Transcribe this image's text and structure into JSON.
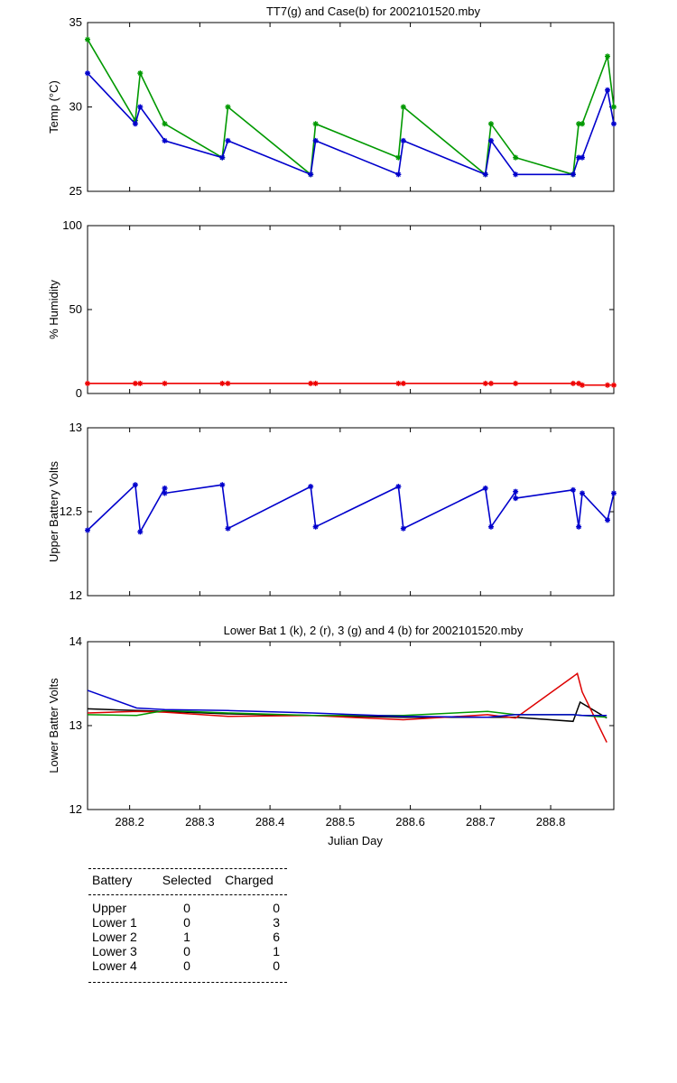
{
  "chart_data": [
    {
      "type": "line",
      "title": "TT7(g) and Case(b) for 2002101520.mby",
      "ylabel": "Temp  (°C)",
      "xlabel": "",
      "xlim": [
        288.14,
        288.89
      ],
      "ylim": [
        25,
        35
      ],
      "yticks": [
        "25",
        "30",
        "35"
      ],
      "xticks": [],
      "grid": false,
      "series": [
        {
          "name": "TT7",
          "color": "#009900",
          "x": [
            288.14,
            288.208,
            288.215,
            288.25,
            288.332,
            288.34,
            288.458,
            288.465,
            288.583,
            288.59,
            288.707,
            288.715,
            288.75,
            288.832,
            288.84,
            288.845,
            288.881,
            288.89
          ],
          "y": [
            34,
            29.2,
            32,
            29,
            27,
            30,
            26,
            29,
            27,
            30,
            26,
            29,
            27,
            26,
            29,
            29,
            33,
            30
          ]
        },
        {
          "name": "Case",
          "color": "#0000cc",
          "x": [
            288.14,
            288.208,
            288.215,
            288.25,
            288.332,
            288.34,
            288.458,
            288.465,
            288.583,
            288.59,
            288.707,
            288.715,
            288.75,
            288.832,
            288.84,
            288.845,
            288.881,
            288.89
          ],
          "y": [
            32,
            29,
            30,
            28,
            27,
            28,
            26,
            28,
            26,
            28,
            26,
            28,
            26,
            26,
            27,
            27,
            31,
            29
          ]
        }
      ]
    },
    {
      "type": "line",
      "title": "",
      "ylabel": "% Humidity",
      "xlabel": "",
      "xlim": [
        288.14,
        288.89
      ],
      "ylim": [
        0,
        100
      ],
      "yticks": [
        "0",
        "50",
        "100"
      ],
      "xticks": [],
      "grid": false,
      "series": [
        {
          "name": "Humidity",
          "color": "#ee0000",
          "x": [
            288.14,
            288.208,
            288.215,
            288.25,
            288.332,
            288.34,
            288.458,
            288.465,
            288.583,
            288.59,
            288.707,
            288.715,
            288.75,
            288.832,
            288.84,
            288.845,
            288.881,
            288.89
          ],
          "y": [
            6,
            6,
            6,
            6,
            6,
            6,
            6,
            6,
            6,
            6,
            6,
            6,
            6,
            6,
            6,
            5,
            5,
            5
          ]
        }
      ]
    },
    {
      "type": "line",
      "title": "",
      "ylabel": "Upper Battery Volts",
      "xlabel": "",
      "xlim": [
        288.14,
        288.89
      ],
      "ylim": [
        12,
        13
      ],
      "yticks": [
        "12",
        "12.5",
        "13"
      ],
      "xticks": [],
      "grid": false,
      "series": [
        {
          "name": "Upper",
          "color": "#0000cc",
          "x": [
            288.14,
            288.208,
            288.215,
            288.25,
            288.25,
            288.332,
            288.34,
            288.458,
            288.465,
            288.583,
            288.59,
            288.707,
            288.715,
            288.75,
            288.75,
            288.832,
            288.84,
            288.845,
            288.881,
            288.89
          ],
          "y": [
            12.39,
            12.66,
            12.38,
            12.64,
            12.61,
            12.66,
            12.4,
            12.65,
            12.41,
            12.65,
            12.4,
            12.64,
            12.41,
            12.62,
            12.58,
            12.63,
            12.41,
            12.61,
            12.45,
            12.61
          ]
        }
      ]
    },
    {
      "type": "line",
      "title": "Lower Bat 1 (k), 2 (r), 3 (g) and 4 (b) for 2002101520.mby",
      "ylabel": "Lower Batter Volts",
      "xlabel": "Julian Day",
      "xlim": [
        288.14,
        288.89
      ],
      "ylim": [
        12,
        14
      ],
      "yticks": [
        "12",
        "13",
        "14"
      ],
      "xticks": [
        "288.2",
        "288.3",
        "288.4",
        "288.5",
        "288.6",
        "288.7",
        "288.8"
      ],
      "grid": false,
      "series": [
        {
          "name": "Lower 1",
          "color": "#000000",
          "x": [
            288.14,
            288.21,
            288.25,
            288.34,
            288.46,
            288.59,
            288.71,
            288.75,
            288.832,
            288.842,
            288.88
          ],
          "y": [
            13.2,
            13.18,
            13.17,
            13.14,
            13.12,
            13.1,
            13.1,
            13.1,
            13.05,
            13.28,
            13.09
          ]
        },
        {
          "name": "Lower 2",
          "color": "#dd0000",
          "x": [
            288.14,
            288.21,
            288.25,
            288.34,
            288.46,
            288.59,
            288.71,
            288.75,
            288.838,
            288.845,
            288.88
          ],
          "y": [
            13.15,
            13.17,
            13.16,
            13.11,
            13.12,
            13.07,
            13.13,
            13.09,
            13.62,
            13.4,
            12.8
          ]
        },
        {
          "name": "Lower 3",
          "color": "#009900",
          "x": [
            288.14,
            288.21,
            288.25,
            288.34,
            288.46,
            288.59,
            288.71,
            288.75,
            288.832,
            288.845,
            288.88
          ],
          "y": [
            13.13,
            13.12,
            13.18,
            13.15,
            13.12,
            13.12,
            13.17,
            13.13,
            13.13,
            13.12,
            13.1
          ]
        },
        {
          "name": "Lower 4",
          "color": "#0000cc",
          "x": [
            288.14,
            288.21,
            288.25,
            288.34,
            288.46,
            288.59,
            288.71,
            288.75,
            288.832,
            288.845,
            288.88
          ],
          "y": [
            13.42,
            13.21,
            13.19,
            13.18,
            13.15,
            13.11,
            13.1,
            13.13,
            13.13,
            13.12,
            13.12
          ]
        }
      ]
    }
  ],
  "battery_table": {
    "headers": {
      "battery": "Battery",
      "selected": "Selected",
      "charged": "Charged"
    },
    "rows": [
      {
        "battery": "Upper",
        "selected": "0",
        "charged": "0"
      },
      {
        "battery": "Lower 1",
        "selected": "0",
        "charged": "3"
      },
      {
        "battery": "Lower 2",
        "selected": "1",
        "charged": "6"
      },
      {
        "battery": "Lower 3",
        "selected": "0",
        "charged": "1"
      },
      {
        "battery": "Lower 4",
        "selected": "0",
        "charged": "0"
      }
    ]
  }
}
